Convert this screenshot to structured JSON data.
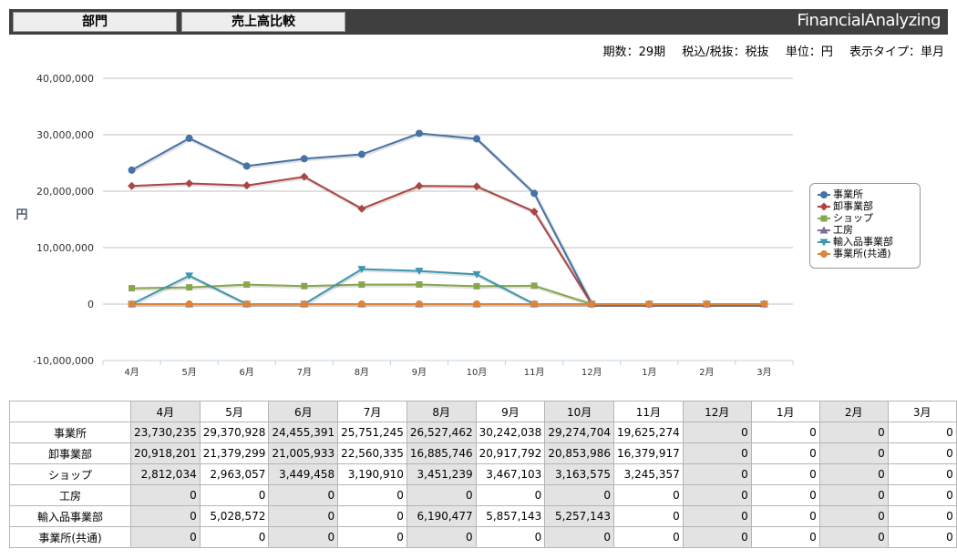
{
  "header": {
    "tabs": [
      {
        "label": "部門"
      },
      {
        "label": "売上高比較"
      }
    ],
    "brand": "FinancialAnalyzing"
  },
  "info": {
    "period": "期数：29期",
    "tax": "税込/税抜：税抜",
    "unit": "単位：円",
    "display_type": "表示タイプ：単月"
  },
  "chart_data": {
    "type": "line",
    "categories": [
      "4月",
      "5月",
      "6月",
      "7月",
      "8月",
      "9月",
      "10月",
      "11月",
      "12月",
      "1月",
      "2月",
      "3月"
    ],
    "ylabel": "円",
    "ylim": [
      -10000000,
      40000000
    ],
    "yticks": [
      -10000000,
      0,
      10000000,
      20000000,
      30000000,
      40000000
    ],
    "ytick_labels": [
      "-10,000,000",
      "0",
      "10,000,000",
      "20,000,000",
      "30,000,000",
      "40,000,000"
    ],
    "grid": true,
    "legend_position": "right",
    "series": [
      {
        "name": "事業所",
        "color": "#4572a7",
        "marker": "circle",
        "values": [
          23730235,
          29370928,
          24455391,
          25751245,
          26527462,
          30242038,
          29274704,
          19625274,
          0,
          0,
          0,
          0
        ]
      },
      {
        "name": "卸事業部",
        "color": "#aa4643",
        "marker": "diamond",
        "values": [
          20918201,
          21379299,
          21005933,
          22560335,
          16885746,
          20917792,
          20853986,
          16379917,
          0,
          0,
          0,
          0
        ]
      },
      {
        "name": "ショップ",
        "color": "#89a54e",
        "marker": "square",
        "values": [
          2812034,
          2963057,
          3449458,
          3190910,
          3451239,
          3467103,
          3163575,
          3245357,
          0,
          0,
          0,
          0
        ]
      },
      {
        "name": "工房",
        "color": "#80699b",
        "marker": "triangle",
        "values": [
          0,
          0,
          0,
          0,
          0,
          0,
          0,
          0,
          0,
          0,
          0,
          0
        ]
      },
      {
        "name": "輸入品事業部",
        "color": "#3d96ae",
        "marker": "triangle-down",
        "values": [
          0,
          5028572,
          0,
          0,
          6190477,
          5857143,
          5257143,
          0,
          0,
          0,
          0,
          0
        ]
      },
      {
        "name": "事業所(共通)",
        "color": "#db843d",
        "marker": "circle",
        "values": [
          0,
          0,
          0,
          0,
          0,
          0,
          0,
          0,
          0,
          0,
          0,
          0
        ]
      }
    ]
  },
  "table": {
    "columns": [
      "4月",
      "5月",
      "6月",
      "7月",
      "8月",
      "9月",
      "10月",
      "11月",
      "12月",
      "1月",
      "2月",
      "3月"
    ],
    "rows": [
      {
        "label": "事業所",
        "cells": [
          "23,730,235",
          "29,370,928",
          "24,455,391",
          "25,751,245",
          "26,527,462",
          "30,242,038",
          "29,274,704",
          "19,625,274",
          "0",
          "0",
          "0",
          "0"
        ]
      },
      {
        "label": "卸事業部",
        "cells": [
          "20,918,201",
          "21,379,299",
          "21,005,933",
          "22,560,335",
          "16,885,746",
          "20,917,792",
          "20,853,986",
          "16,379,917",
          "0",
          "0",
          "0",
          "0"
        ]
      },
      {
        "label": "ショップ",
        "cells": [
          "2,812,034",
          "2,963,057",
          "3,449,458",
          "3,190,910",
          "3,451,239",
          "3,467,103",
          "3,163,575",
          "3,245,357",
          "0",
          "0",
          "0",
          "0"
        ]
      },
      {
        "label": "工房",
        "cells": [
          "0",
          "0",
          "0",
          "0",
          "0",
          "0",
          "0",
          "0",
          "0",
          "0",
          "0",
          "0"
        ]
      },
      {
        "label": "輸入品事業部",
        "cells": [
          "0",
          "5,028,572",
          "0",
          "0",
          "6,190,477",
          "5,857,143",
          "5,257,143",
          "0",
          "0",
          "0",
          "0",
          "0"
        ]
      },
      {
        "label": "事業所(共通)",
        "cells": [
          "0",
          "0",
          "0",
          "0",
          "0",
          "0",
          "0",
          "0",
          "0",
          "0",
          "0",
          "0"
        ]
      }
    ]
  }
}
